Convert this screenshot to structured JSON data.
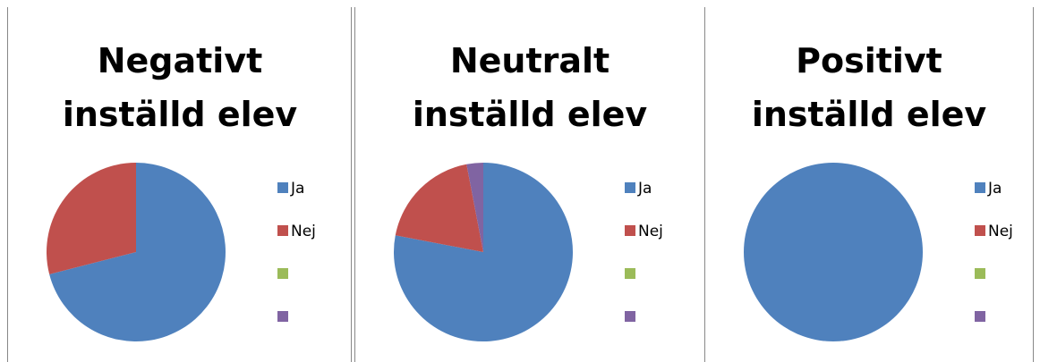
{
  "chart_data": [
    {
      "type": "pie",
      "title": "Negativt inställd elev",
      "categories": [
        "Ja",
        "Nej",
        null,
        null
      ],
      "values": [
        71,
        29,
        0,
        0
      ],
      "colors": [
        "#4f81bd",
        "#c0504d",
        "#9bbb59",
        "#8064a2"
      ]
    },
    {
      "type": "pie",
      "title": "Neutralt inställd elev",
      "categories": [
        "Ja",
        "Nej",
        null,
        null
      ],
      "values": [
        78,
        19,
        0,
        3
      ],
      "colors": [
        "#4f81bd",
        "#c0504d",
        "#9bbb59",
        "#8064a2"
      ]
    },
    {
      "type": "pie",
      "title": "Positivt inställd elev",
      "categories": [
        "Ja",
        "Nej",
        null,
        null
      ],
      "values": [
        100,
        0,
        0,
        0
      ],
      "colors": [
        "#4f81bd",
        "#c0504d",
        "#9bbb59",
        "#8064a2"
      ]
    }
  ]
}
